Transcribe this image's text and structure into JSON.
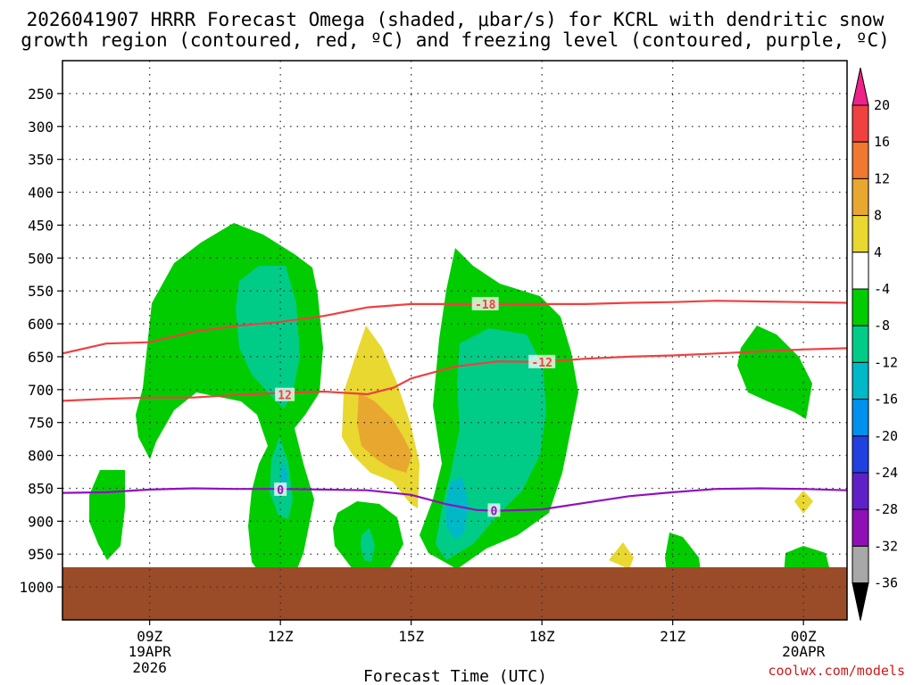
{
  "chart_data": {
    "type": "contour",
    "title_line1": "2026041907 HRRR Forecast Omega (shaded, μbar/s) for KCRL with dendritic snow",
    "title_line2": "growth region (contoured, red, ºC) and freezing level (contoured, purple, ºC)",
    "xlabel": "Forecast Time (UTC)",
    "ylabel": "Pressure (hPa)",
    "credit": "coolwx.com/models",
    "x_start_hour": 7,
    "x_end_hour": 25,
    "x_ticks": [
      {
        "hour": 9,
        "label": "09Z",
        "sub1": "19APR",
        "sub2": "2026"
      },
      {
        "hour": 12,
        "label": "12Z",
        "sub1": "",
        "sub2": ""
      },
      {
        "hour": 15,
        "label": "15Z",
        "sub1": "",
        "sub2": ""
      },
      {
        "hour": 18,
        "label": "18Z",
        "sub1": "",
        "sub2": ""
      },
      {
        "hour": 21,
        "label": "21Z",
        "sub1": "",
        "sub2": ""
      },
      {
        "hour": 24,
        "label": "00Z",
        "sub1": "20APR",
        "sub2": ""
      }
    ],
    "y_range": [
      200,
      1050
    ],
    "y_ticks": [
      250,
      300,
      350,
      400,
      450,
      500,
      550,
      600,
      650,
      700,
      750,
      800,
      850,
      900,
      950,
      1000
    ],
    "surface_pressure": 970,
    "colorbar": {
      "labels": [
        "20",
        "16",
        "12",
        "8",
        "4",
        "-4",
        "-8",
        "-12",
        "-16",
        "-20",
        "-24",
        "-28",
        "-32",
        "-36"
      ],
      "colors": [
        "#ee2288",
        "#f04040",
        "#f07830",
        "#e8a830",
        "#e8d830",
        "#ffffff",
        "#00cc00",
        "#00cc88",
        "#00b8c8",
        "#0090ee",
        "#2040e0",
        "#6020c8",
        "#9010b8",
        "#a8a8a8",
        "#000000"
      ]
    },
    "series": [
      {
        "name": "-18",
        "color": "#f04040",
        "label_at_hour": 16.7,
        "points": [
          [
            7,
            645
          ],
          [
            8,
            630
          ],
          [
            9,
            628
          ],
          [
            10,
            612
          ],
          [
            11,
            603
          ],
          [
            12,
            597
          ],
          [
            13,
            588
          ],
          [
            14,
            575
          ],
          [
            15,
            570
          ],
          [
            16,
            570
          ],
          [
            17,
            570
          ],
          [
            18,
            570
          ],
          [
            19,
            570
          ],
          [
            20,
            568
          ],
          [
            21,
            567
          ],
          [
            22,
            565
          ],
          [
            23,
            566
          ],
          [
            24,
            567
          ],
          [
            25,
            568
          ]
        ]
      },
      {
        "name": "-12",
        "color": "#f04040",
        "label_at_hour": 18.0,
        "points": [
          [
            7,
            717
          ],
          [
            8,
            714
          ],
          [
            9,
            712
          ],
          [
            10,
            712
          ],
          [
            11,
            708
          ],
          [
            12,
            705
          ],
          [
            13,
            703
          ],
          [
            14,
            707
          ],
          [
            14.6,
            697
          ],
          [
            15,
            683
          ],
          [
            16,
            665
          ],
          [
            17,
            657
          ],
          [
            18,
            658
          ],
          [
            19,
            653
          ],
          [
            20,
            650
          ],
          [
            21,
            648
          ],
          [
            22,
            645
          ],
          [
            23,
            642
          ],
          [
            24,
            639
          ],
          [
            25,
            637
          ]
        ]
      },
      {
        "name": "0",
        "color": "#9010c0",
        "label_at_hour": 16.9,
        "points": [
          [
            7,
            857
          ],
          [
            8,
            856
          ],
          [
            9,
            852
          ],
          [
            10,
            850
          ],
          [
            11,
            851
          ],
          [
            12,
            851
          ],
          [
            13,
            852
          ],
          [
            14,
            853
          ],
          [
            15,
            860
          ],
          [
            15.8,
            874
          ],
          [
            16.5,
            883
          ],
          [
            17,
            884
          ],
          [
            18,
            882
          ],
          [
            19,
            872
          ],
          [
            20,
            862
          ],
          [
            21,
            856
          ],
          [
            22,
            851
          ],
          [
            23,
            850
          ],
          [
            24,
            851
          ],
          [
            25,
            853
          ]
        ]
      }
    ],
    "extra_labels": [
      {
        "text": "12",
        "hour": 12.1,
        "pressure": 708,
        "color": "#f04040"
      },
      {
        "text": "0",
        "hour": 12.0,
        "pressure": 852,
        "color": "#9010c0"
      }
    ],
    "shaded_levels": {
      "green_-4_to_-8": "#00cc00",
      "teal_-8_to_-12": "#00cc88",
      "cyan_-12_to_-16": "#00b8c8",
      "yellow_4_to_8": "#e8d830",
      "orange_8_to_12": "#e8a830"
    }
  }
}
